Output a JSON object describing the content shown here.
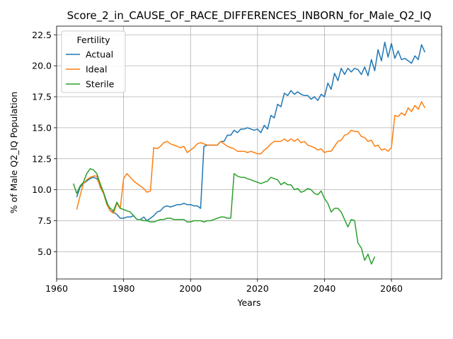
{
  "chart_data": {
    "type": "line",
    "title": "Score_2_in_CAUSE_OF_RACE_DIFFERENCES_INBORN_for_Male_Q2_IQ",
    "xlabel": "Years",
    "ylabel": "% of Male Q2_IQ Population",
    "xlim": [
      1960,
      2075
    ],
    "ylim": [
      2.8,
      23.2
    ],
    "xticks": [
      1960,
      1980,
      2000,
      2020,
      2040,
      2060
    ],
    "yticks": [
      5.0,
      7.5,
      10.0,
      12.5,
      15.0,
      17.5,
      20.0,
      22.5
    ],
    "grid": true,
    "legend": {
      "title": "Fertility",
      "position": "top-left"
    },
    "series": [
      {
        "name": "Actual",
        "color": "#1f77b4",
        "x": [
          1966,
          1967,
          1968,
          1969,
          1970,
          1971,
          1972,
          1973,
          1974,
          1975,
          1976,
          1977,
          1978,
          1979,
          1980,
          1981,
          1982,
          1983,
          1984,
          1985,
          1986,
          1987,
          1988,
          1989,
          1990,
          1991,
          1992,
          1993,
          1994,
          1995,
          1996,
          1997,
          1998,
          1999,
          2000,
          2001,
          2002,
          2003,
          2004,
          2005,
          2006,
          2007,
          2008,
          2009,
          2010,
          2011,
          2012,
          2013,
          2014,
          2015,
          2016,
          2017,
          2018,
          2019,
          2020,
          2021,
          2022,
          2023,
          2024,
          2025,
          2026,
          2027,
          2028,
          2029,
          2030,
          2031,
          2032,
          2033,
          2034,
          2035,
          2036,
          2037,
          2038,
          2039,
          2040,
          2041,
          2042,
          2043,
          2044,
          2045,
          2046,
          2047,
          2048,
          2049,
          2050,
          2051,
          2052,
          2053,
          2054,
          2055,
          2056,
          2057,
          2058,
          2059,
          2060,
          2061,
          2062,
          2063,
          2064,
          2065,
          2066,
          2067,
          2068,
          2069,
          2070
        ],
        "y": [
          9.4,
          10.2,
          10.5,
          10.7,
          10.9,
          11.0,
          10.9,
          10.4,
          9.8,
          9.0,
          8.3,
          8.2,
          8.0,
          7.7,
          7.7,
          7.8,
          7.8,
          7.9,
          7.6,
          7.6,
          7.8,
          7.5,
          7.7,
          7.9,
          8.2,
          8.3,
          8.6,
          8.7,
          8.6,
          8.7,
          8.8,
          8.8,
          8.9,
          8.8,
          8.8,
          8.7,
          8.7,
          8.5,
          13.5,
          13.6,
          13.6,
          13.6,
          13.6,
          13.9,
          13.9,
          14.4,
          14.4,
          14.8,
          14.6,
          14.9,
          14.9,
          15.0,
          14.9,
          14.8,
          14.9,
          14.6,
          15.2,
          14.9,
          16.0,
          15.8,
          16.9,
          16.7,
          17.8,
          17.6,
          18.0,
          17.7,
          17.9,
          17.7,
          17.6,
          17.6,
          17.3,
          17.5,
          17.2,
          17.7,
          17.5,
          18.6,
          18.1,
          19.4,
          18.8,
          19.8,
          19.3,
          19.8,
          19.5,
          19.8,
          19.7,
          19.3,
          19.9,
          19.2,
          20.5,
          19.6,
          21.3,
          20.4,
          21.9,
          20.7,
          21.8,
          20.6,
          21.2,
          20.5,
          20.6,
          20.4,
          20.2,
          20.8,
          20.5,
          21.7,
          21.1
        ]
      },
      {
        "name": "Ideal",
        "color": "#ff7f0e",
        "x": [
          1966,
          1967,
          1968,
          1969,
          1970,
          1971,
          1972,
          1973,
          1974,
          1975,
          1976,
          1977,
          1978,
          1979,
          1980,
          1981,
          1982,
          1983,
          1984,
          1985,
          1986,
          1987,
          1988,
          1989,
          1990,
          1991,
          1992,
          1993,
          1994,
          1995,
          1996,
          1997,
          1998,
          1999,
          2000,
          2001,
          2002,
          2003,
          2004,
          2005,
          2006,
          2007,
          2008,
          2009,
          2010,
          2011,
          2012,
          2013,
          2014,
          2015,
          2016,
          2017,
          2018,
          2019,
          2020,
          2021,
          2022,
          2023,
          2024,
          2025,
          2026,
          2027,
          2028,
          2029,
          2030,
          2031,
          2032,
          2033,
          2034,
          2035,
          2036,
          2037,
          2038,
          2039,
          2040,
          2041,
          2042,
          2043,
          2044,
          2045,
          2046,
          2047,
          2048,
          2049,
          2050,
          2051,
          2052,
          2053,
          2054,
          2055,
          2056,
          2057,
          2058,
          2059,
          2060,
          2061,
          2062,
          2063,
          2064,
          2065,
          2066,
          2067,
          2068,
          2069,
          2070
        ],
        "y": [
          8.4,
          9.5,
          10.5,
          10.8,
          11.0,
          11.1,
          11.1,
          10.2,
          9.7,
          8.8,
          8.3,
          8.1,
          8.9,
          8.5,
          10.9,
          11.3,
          11.0,
          10.7,
          10.5,
          10.3,
          10.1,
          9.8,
          9.9,
          13.4,
          13.3,
          13.5,
          13.8,
          13.9,
          13.7,
          13.6,
          13.5,
          13.4,
          13.5,
          13.0,
          13.2,
          13.4,
          13.7,
          13.8,
          13.7,
          13.6,
          13.6,
          13.6,
          13.6,
          13.9,
          13.7,
          13.5,
          13.4,
          13.3,
          13.1,
          13.1,
          13.1,
          13.0,
          13.1,
          13.0,
          12.9,
          12.9,
          13.2,
          13.4,
          13.7,
          13.9,
          13.9,
          13.9,
          14.1,
          13.9,
          14.1,
          13.9,
          14.1,
          13.8,
          13.9,
          13.6,
          13.5,
          13.4,
          13.2,
          13.3,
          13.0,
          13.1,
          13.1,
          13.5,
          13.9,
          14.0,
          14.4,
          14.5,
          14.8,
          14.7,
          14.7,
          14.3,
          14.2,
          13.9,
          14.0,
          13.5,
          13.6,
          13.2,
          13.3,
          13.1,
          13.4,
          16.0,
          15.9,
          16.2,
          16.0,
          16.6,
          16.3,
          16.8,
          16.5,
          17.1,
          16.6
        ]
      },
      {
        "name": "Sterile",
        "color": "#2ca02c",
        "x": [
          1965,
          1966,
          1967,
          1968,
          1969,
          1970,
          1971,
          1972,
          1973,
          1974,
          1975,
          1976,
          1977,
          1978,
          1979,
          1980,
          1981,
          1982,
          1983,
          1984,
          1985,
          1986,
          1987,
          1988,
          1989,
          1990,
          1991,
          1992,
          1993,
          1994,
          1995,
          1996,
          1997,
          1998,
          1999,
          2000,
          2001,
          2002,
          2003,
          2004,
          2005,
          2006,
          2007,
          2008,
          2009,
          2010,
          2011,
          2012,
          2013,
          2014,
          2015,
          2016,
          2017,
          2018,
          2019,
          2020,
          2021,
          2022,
          2023,
          2024,
          2025,
          2026,
          2027,
          2028,
          2029,
          2030,
          2031,
          2032,
          2033,
          2034,
          2035,
          2036,
          2037,
          2038,
          2039,
          2040,
          2041,
          2042,
          2043,
          2044,
          2045,
          2046,
          2047,
          2048,
          2049,
          2050,
          2051,
          2052,
          2053,
          2054,
          2055
        ],
        "y": [
          10.5,
          9.7,
          10.3,
          10.6,
          11.3,
          11.7,
          11.6,
          11.3,
          10.5,
          9.8,
          8.9,
          8.5,
          8.3,
          9.0,
          8.5,
          8.4,
          8.3,
          8.2,
          7.9,
          7.6,
          7.6,
          7.5,
          7.5,
          7.4,
          7.4,
          7.5,
          7.6,
          7.6,
          7.7,
          7.7,
          7.6,
          7.6,
          7.6,
          7.6,
          7.4,
          7.4,
          7.5,
          7.5,
          7.5,
          7.4,
          7.5,
          7.5,
          7.6,
          7.7,
          7.8,
          7.8,
          7.7,
          7.7,
          11.3,
          11.1,
          11.0,
          11.0,
          10.9,
          10.8,
          10.7,
          10.6,
          10.5,
          10.6,
          10.7,
          11.0,
          10.9,
          10.8,
          10.4,
          10.6,
          10.4,
          10.4,
          10.0,
          10.1,
          9.8,
          9.9,
          10.1,
          10.0,
          9.7,
          9.6,
          9.9,
          9.3,
          8.9,
          8.2,
          8.5,
          8.5,
          8.2,
          7.6,
          7.0,
          7.6,
          7.5,
          5.7,
          5.3,
          4.3,
          4.8,
          4.0,
          4.6
        ]
      }
    ]
  }
}
